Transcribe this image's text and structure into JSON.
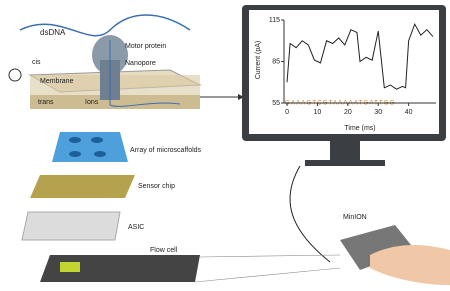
{
  "labels": {
    "dsdna": "dsDNA",
    "motor_protein": "Motor protein",
    "cis": "cis",
    "nanopore": "Nanopore",
    "membrane": "Membrane",
    "trans": "trans",
    "ions": "Ions",
    "array": "Array of microscaffolds",
    "sensor_chip": "Sensor chip",
    "asic": "ASIC",
    "flow_cell": "Flow cell",
    "minion": "MinION"
  },
  "monitor_chart": {
    "type": "line",
    "ylabel": "Current (pA)",
    "xlabel": "Time (ms)",
    "sequence": "GAAAGTCGTAAAAATGATTGG",
    "xlim": [
      -1,
      49
    ],
    "ylim": [
      55,
      115
    ],
    "xticks": [
      0,
      10,
      20,
      30,
      40
    ],
    "yticks": [
      55,
      85,
      115
    ],
    "color": "#222",
    "x": [
      0,
      1,
      3,
      5,
      7,
      9,
      11,
      13,
      15,
      17,
      19,
      21,
      23,
      24,
      26,
      28,
      30,
      32,
      34,
      36,
      38,
      39,
      40,
      42,
      44,
      46,
      48
    ],
    "values": [
      70,
      98,
      95,
      100,
      97,
      86,
      84,
      100,
      98,
      102,
      97,
      108,
      106,
      85,
      88,
      86,
      107,
      66,
      68,
      65,
      67,
      66,
      100,
      112,
      104,
      108,
      103
    ]
  }
}
